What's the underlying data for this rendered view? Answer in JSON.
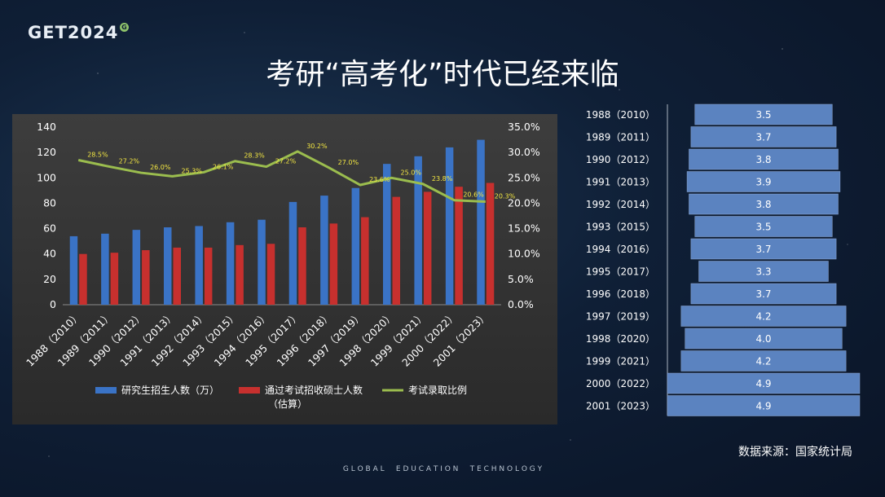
{
  "logo": {
    "text": "GET2024",
    "badge": "G"
  },
  "title": "考研“高考化”时代已经来临",
  "source": "数据来源：国家统计局",
  "footer": "G L O B A L     E D U C A T I O N     T E C H N O L O G Y",
  "colors": {
    "blue": "#3a73c6",
    "red": "#c7302e",
    "green": "#9bbd4e",
    "label_yellow": "#f2e642",
    "bar_right": "#5b83c0"
  },
  "chart_data": [
    {
      "type": "bar",
      "categories": [
        "1988（2010）",
        "1989（2011）",
        "1990（2012）",
        "1991（2013）",
        "1992（2014）",
        "1993（2015）",
        "1994（2016）",
        "1995（2017）",
        "1996（2018）",
        "1997（2019）",
        "1998（2020）",
        "1999（2021）",
        "2000（2022）",
        "2001（2023）"
      ],
      "series": [
        {
          "name": "研究生招生人数（万）",
          "kind": "bar",
          "axis": "left",
          "color": "#3a73c6",
          "values": [
            54,
            56,
            59,
            61,
            62,
            65,
            67,
            81,
            86,
            92,
            111,
            117,
            124,
            130
          ]
        },
        {
          "name": "通过考试招收硕士人数（估算）",
          "kind": "bar",
          "axis": "left",
          "color": "#c7302e",
          "values": [
            40,
            41,
            43,
            45,
            45,
            47,
            48,
            61,
            64,
            69,
            85,
            89,
            93,
            96
          ]
        },
        {
          "name": "考试录取比例",
          "kind": "line",
          "axis": "right",
          "color": "#9bbd4e",
          "values": [
            28.5,
            27.2,
            26.0,
            25.3,
            26.1,
            28.3,
            27.2,
            30.2,
            27.0,
            23.6,
            25.0,
            23.8,
            20.6,
            20.3
          ],
          "labels": [
            "28.5%",
            "27.2%",
            "26.0%",
            "25.3%",
            "26.1%",
            "28.3%",
            "27.2%",
            "30.2%",
            "27.0%",
            "23.6%",
            "25.0%",
            "23.8%",
            "20.6%",
            "20.3%"
          ]
        }
      ],
      "y_left": {
        "min": 0,
        "max": 140,
        "ticks": [
          "0",
          "20",
          "40",
          "60",
          "80",
          "100",
          "120",
          "140"
        ]
      },
      "y_right": {
        "min": 0,
        "max": 35,
        "ticks": [
          "0.0%",
          "5.0%",
          "10.0%",
          "15.0%",
          "20.0%",
          "25.0%",
          "30.0%",
          "35.0%"
        ]
      },
      "legend": {
        "position": "bottom",
        "items": [
          "研究生招生人数（万）",
          "通过考试招收硕士人数",
          "（估算）",
          "考试录取比例"
        ]
      },
      "grid": false
    },
    {
      "type": "bar",
      "orientation": "horizontal-centered",
      "categories": [
        "1988（2010）",
        "1989（2011）",
        "1990（2012）",
        "1991（2013）",
        "1992（2014）",
        "1993（2015）",
        "1994（2016）",
        "1995（2017）",
        "1996（2018）",
        "1997（2019）",
        "1998（2020）",
        "1999（2021）",
        "2000（2022）",
        "2001（2023）"
      ],
      "values": [
        3.5,
        3.7,
        3.8,
        3.9,
        3.8,
        3.5,
        3.7,
        3.3,
        3.7,
        4.2,
        4.0,
        4.2,
        4.9,
        4.9
      ],
      "labels": [
        "3.5",
        "3.7",
        "3.8",
        "3.9",
        "3.8",
        "3.5",
        "3.7",
        "3.3",
        "3.7",
        "4.2",
        "4.0",
        "4.2",
        "4.9",
        "4.9"
      ],
      "color": "#5b83c0"
    }
  ]
}
